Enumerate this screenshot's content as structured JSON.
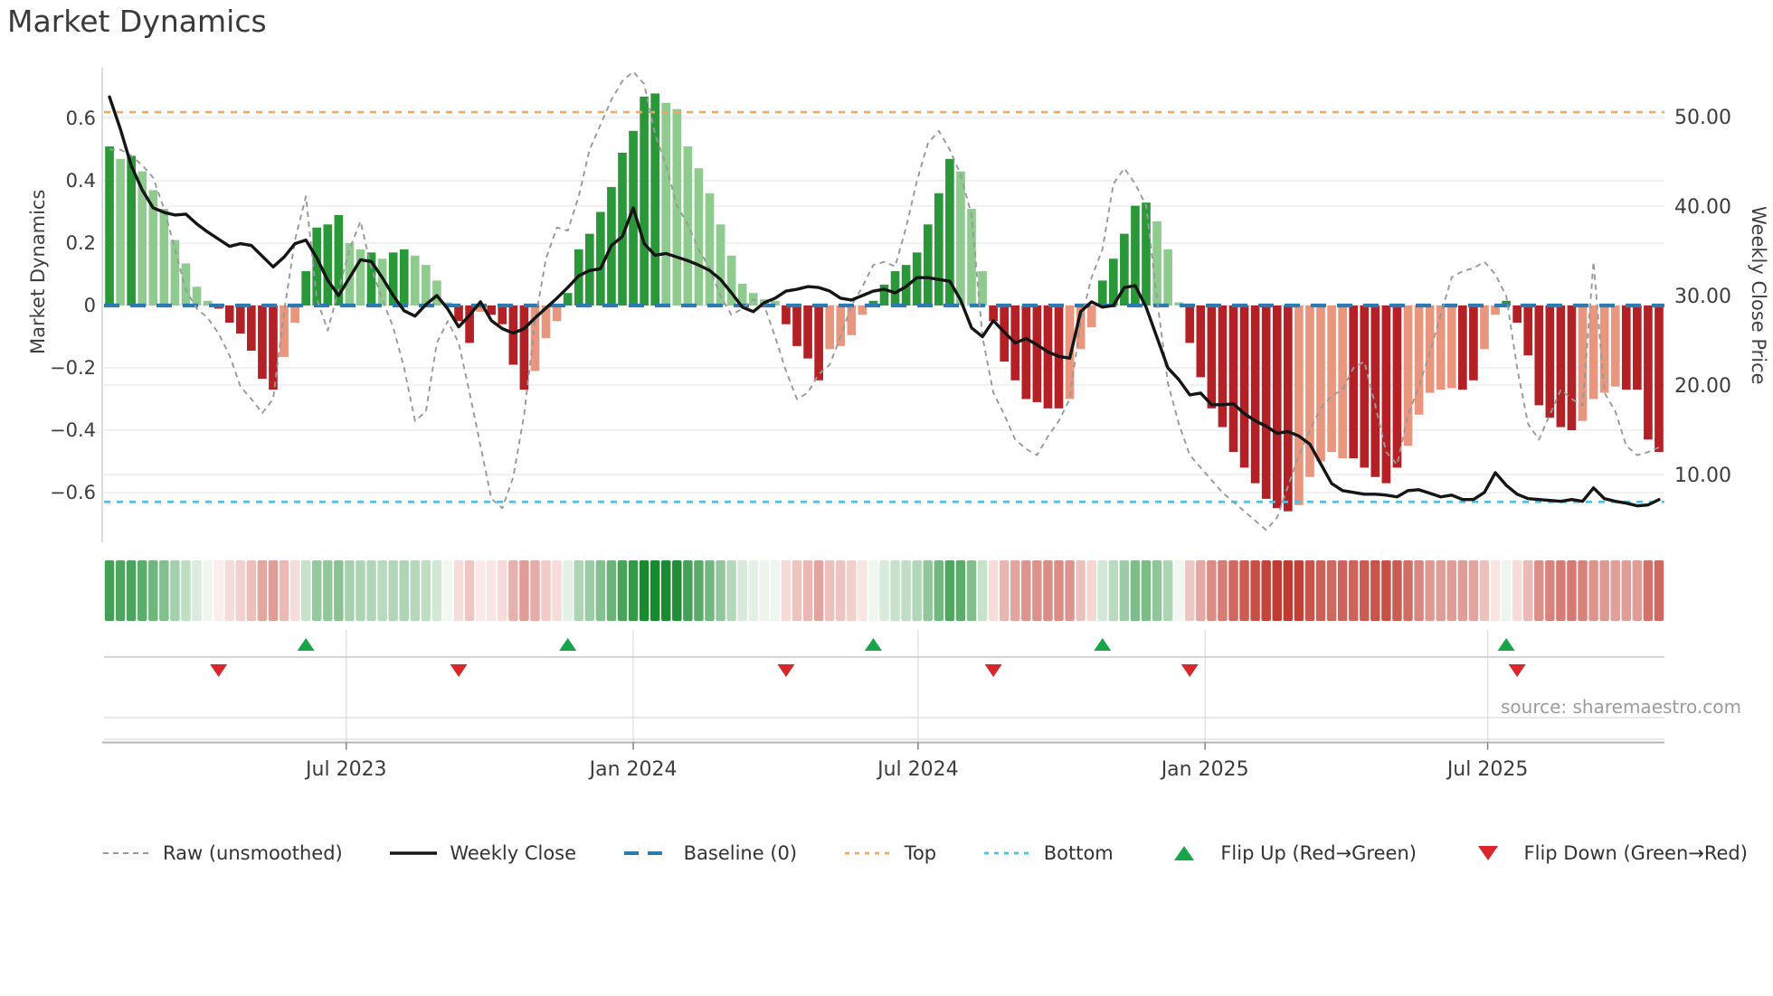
{
  "title": "Market Dynamics",
  "axes": {
    "left_label": "Market Dynamics",
    "right_label": "Weekly Close Price",
    "left_ticks": [
      0.6,
      0.4,
      0.2,
      0,
      -0.2,
      -0.4,
      -0.6
    ],
    "right_ticks": [
      50.0,
      40.0,
      30.0,
      20.0,
      10.0
    ]
  },
  "source_text": "source: sharemaestro.com",
  "colors": {
    "bar_dark_green": "#2a9838",
    "bar_light_green": "#8fcb8f",
    "bar_dark_red": "#b32025",
    "bar_light_red": "#e8967d",
    "weekly_close_line": "#151515",
    "raw_line": "#999999",
    "baseline": "#2b7bb2",
    "top_line": "#f5a760",
    "bottom_line": "#45c5e8",
    "flip_up": "#18a449",
    "flip_down": "#d8262c",
    "heat_green": "#178a2e",
    "heat_red": "#bf3a30",
    "grid": "#e9e9e9",
    "axis_text": "#3c3c3c",
    "spine": "#cfcfcf"
  },
  "legend": [
    {
      "style": "dash-gray",
      "label": "Raw (unsmoothed)"
    },
    {
      "style": "solid-black",
      "label": "Weekly Close"
    },
    {
      "style": "dash-blue",
      "label": "Baseline (0)"
    },
    {
      "style": "dot-orange",
      "label": "Top"
    },
    {
      "style": "dot-cyan",
      "label": "Bottom"
    },
    {
      "style": "tri-up",
      "label": "Flip Up (Red→Green)"
    },
    {
      "style": "tri-down",
      "label": "Flip Down (Green→Red)"
    }
  ],
  "chart_data": {
    "type": "bar",
    "subtitle_note": "weekly oscillator bars + weekly close price line + raw unsmoothed line + heatmap strip + flip markers",
    "start_week": "2023-01-30",
    "weeks": 143,
    "x_tick_labels": [
      "Jul 2023",
      "Jan 2024",
      "Jul 2024",
      "Jan 2025",
      "Jul 2025"
    ],
    "x_tick_week_offsets": [
      21.7,
      48.0,
      74.1,
      100.4,
      126.3
    ],
    "left_axis_range": [
      -0.78,
      0.76
    ],
    "right_axis_range": [
      4.0,
      56.0
    ],
    "top_threshold": 0.62,
    "bottom_threshold": -0.63,
    "baseline": 0,
    "oscillator": [
      0.51,
      0.47,
      0.48,
      0.43,
      0.37,
      0.31,
      0.21,
      0.135,
      0.06,
      0.015,
      -0.01,
      -0.055,
      -0.09,
      -0.145,
      -0.235,
      -0.27,
      -0.165,
      -0.055,
      0.11,
      0.25,
      0.26,
      0.29,
      0.2,
      0.18,
      0.17,
      0.15,
      0.17,
      0.18,
      0.16,
      0.13,
      0.08,
      0.01,
      -0.05,
      -0.12,
      -0.02,
      -0.03,
      -0.06,
      -0.19,
      -0.27,
      -0.21,
      -0.105,
      -0.05,
      0.04,
      0.18,
      0.23,
      0.3,
      0.38,
      0.49,
      0.56,
      0.67,
      0.68,
      0.65,
      0.63,
      0.51,
      0.44,
      0.36,
      0.26,
      0.16,
      0.07,
      0.04,
      0.02,
      0.015,
      -0.06,
      -0.13,
      -0.17,
      -0.24,
      -0.14,
      -0.13,
      -0.095,
      -0.03,
      0.015,
      0.067,
      0.11,
      0.13,
      0.17,
      0.26,
      0.36,
      0.47,
      0.43,
      0.31,
      0.11,
      -0.05,
      -0.18,
      -0.24,
      -0.3,
      -0.31,
      -0.33,
      -0.33,
      -0.3,
      -0.14,
      -0.07,
      0.08,
      0.15,
      0.23,
      0.32,
      0.33,
      0.27,
      0.18,
      0.01,
      -0.12,
      -0.23,
      -0.33,
      -0.39,
      -0.47,
      -0.52,
      -0.57,
      -0.62,
      -0.65,
      -0.66,
      -0.64,
      -0.55,
      -0.5,
      -0.47,
      -0.49,
      -0.49,
      -0.52,
      -0.55,
      -0.57,
      -0.52,
      -0.45,
      -0.35,
      -0.28,
      -0.27,
      -0.265,
      -0.27,
      -0.24,
      -0.14,
      -0.03,
      0.015,
      -0.055,
      -0.16,
      -0.32,
      -0.36,
      -0.39,
      -0.4,
      -0.37,
      -0.3,
      -0.28,
      -0.26,
      -0.27,
      -0.27,
      -0.43,
      -0.47
    ],
    "bar_class": [
      "dg",
      "lg",
      "dg",
      "lg",
      "lg",
      "lg",
      "lg",
      "lg",
      "lg",
      "lg",
      "dr",
      "dr",
      "dr",
      "dr",
      "dr",
      "dr",
      "lr",
      "lr",
      "dg",
      "dg",
      "dg",
      "dg",
      "lg",
      "lg",
      "dg",
      "lg",
      "dg",
      "dg",
      "lg",
      "lg",
      "lg",
      "lg",
      "dr",
      "dr",
      "lr",
      "dr",
      "dr",
      "dr",
      "dr",
      "lr",
      "lr",
      "lr",
      "dg",
      "dg",
      "dg",
      "dg",
      "dg",
      "dg",
      "dg",
      "dg",
      "dg",
      "lg",
      "lg",
      "lg",
      "lg",
      "lg",
      "lg",
      "lg",
      "lg",
      "lg",
      "lg",
      "lg",
      "dr",
      "dr",
      "dr",
      "dr",
      "lr",
      "lr",
      "lr",
      "lr",
      "dg",
      "dg",
      "dg",
      "dg",
      "dg",
      "dg",
      "dg",
      "dg",
      "lg",
      "lg",
      "lg",
      "dr",
      "dr",
      "dr",
      "dr",
      "dr",
      "dr",
      "dr",
      "lr",
      "lr",
      "lr",
      "dg",
      "dg",
      "dg",
      "dg",
      "dg",
      "lg",
      "lg",
      "lg",
      "dr",
      "dr",
      "dr",
      "dr",
      "dr",
      "dr",
      "dr",
      "dr",
      "dr",
      "dr",
      "lr",
      "lr",
      "lr",
      "lr",
      "lr",
      "dr",
      "dr",
      "dr",
      "dr",
      "dr",
      "lr",
      "lr",
      "lr",
      "lr",
      "lr",
      "dr",
      "dr",
      "lr",
      "lr",
      "dg",
      "dr",
      "dr",
      "dr",
      "dr",
      "dr",
      "dr",
      "lr",
      "lr",
      "lr",
      "lr",
      "dr",
      "dr",
      "dr",
      "dr"
    ],
    "raw": [
      0.5,
      0.5,
      0.48,
      0.45,
      0.41,
      0.31,
      0.18,
      0.05,
      -0.01,
      -0.04,
      -0.09,
      -0.16,
      -0.26,
      -0.3,
      -0.345,
      -0.3,
      -0.02,
      0.21,
      0.35,
      0.02,
      -0.08,
      0.05,
      0.18,
      0.27,
      0.12,
      0.02,
      -0.07,
      -0.2,
      -0.37,
      -0.34,
      -0.12,
      -0.05,
      -0.12,
      -0.28,
      -0.45,
      -0.62,
      -0.65,
      -0.55,
      -0.35,
      -0.05,
      0.15,
      0.25,
      0.24,
      0.35,
      0.5,
      0.58,
      0.66,
      0.72,
      0.75,
      0.71,
      0.55,
      0.45,
      0.32,
      0.26,
      0.18,
      0.12,
      0.03,
      -0.03,
      -0.01,
      0.02,
      0.0,
      -0.1,
      -0.21,
      -0.3,
      -0.28,
      -0.22,
      -0.19,
      -0.1,
      0.0,
      0.06,
      0.13,
      0.14,
      0.125,
      0.25,
      0.4,
      0.52,
      0.56,
      0.5,
      0.42,
      0.29,
      -0.1,
      -0.28,
      -0.35,
      -0.43,
      -0.46,
      -0.48,
      -0.42,
      -0.37,
      -0.3,
      -0.05,
      0.09,
      0.18,
      0.39,
      0.44,
      0.39,
      0.32,
      0.02,
      -0.25,
      -0.38,
      -0.48,
      -0.52,
      -0.56,
      -0.6,
      -0.63,
      -0.66,
      -0.69,
      -0.72,
      -0.68,
      -0.58,
      -0.48,
      -0.4,
      -0.33,
      -0.29,
      -0.27,
      -0.2,
      -0.18,
      -0.32,
      -0.47,
      -0.51,
      -0.35,
      -0.26,
      -0.15,
      -0.03,
      0.09,
      0.11,
      0.12,
      0.14,
      0.1,
      0.03,
      -0.2,
      -0.38,
      -0.43,
      -0.35,
      -0.27,
      -0.3,
      -0.32,
      0.14,
      -0.28,
      -0.34,
      -0.45,
      -0.48,
      -0.47,
      -0.455
    ],
    "weekly_close": [
      52.2,
      48.6,
      44.5,
      41.8,
      39.8,
      39.3,
      39.0,
      39.1,
      38.0,
      37.1,
      36.3,
      35.5,
      35.8,
      35.6,
      34.4,
      33.2,
      34.3,
      35.8,
      36.2,
      34.2,
      31.7,
      30.0,
      32.0,
      34.0,
      33.8,
      32.0,
      30.0,
      28.3,
      27.7,
      29.0,
      30.0,
      28.5,
      26.5,
      27.8,
      29.3,
      27.2,
      26.3,
      25.8,
      26.3,
      27.5,
      28.6,
      29.7,
      30.9,
      32.2,
      32.8,
      33.0,
      35.6,
      36.6,
      39.8,
      35.8,
      34.5,
      34.7,
      34.3,
      33.9,
      33.4,
      32.8,
      31.8,
      30.3,
      28.7,
      28.2,
      29.2,
      29.7,
      30.5,
      30.7,
      31.0,
      30.9,
      30.5,
      29.7,
      29.5,
      30.0,
      30.5,
      30.7,
      30.3,
      31.0,
      32.0,
      32.0,
      31.8,
      31.6,
      29.5,
      26.4,
      25.4,
      27.2,
      25.9,
      24.7,
      25.2,
      24.5,
      23.7,
      23.2,
      23.0,
      28.2,
      29.3,
      28.7,
      28.9,
      30.9,
      31.1,
      28.7,
      25.3,
      21.9,
      20.6,
      18.9,
      19.1,
      17.8,
      17.8,
      17.9,
      16.8,
      16.0,
      15.4,
      14.6,
      14.8,
      14.3,
      13.4,
      11.2,
      9.0,
      8.2,
      8.0,
      7.8,
      7.8,
      7.7,
      7.5,
      8.2,
      8.3,
      7.9,
      7.5,
      7.7,
      7.2,
      7.2,
      8.0,
      10.2,
      8.8,
      7.8,
      7.3,
      7.2,
      7.1,
      7.0,
      7.2,
      7.0,
      8.5,
      7.3,
      7.0,
      6.8,
      6.5,
      6.6,
      7.2
    ],
    "flip_up_indices": [
      18,
      42,
      70,
      91,
      128
    ],
    "flip_down_indices": [
      10,
      32,
      62,
      81,
      99,
      129
    ]
  }
}
